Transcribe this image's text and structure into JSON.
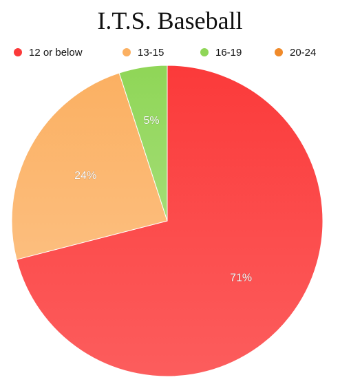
{
  "chart_data": {
    "type": "pie",
    "title": "I.T.S. Baseball",
    "categories": [
      "12 or below",
      "13-15",
      "16-19",
      "20-24"
    ],
    "values": [
      71,
      24,
      5,
      0
    ],
    "value_labels": [
      "71%",
      "24%",
      "5%",
      ""
    ],
    "colors": [
      "#fb3a3a",
      "#fbb062",
      "#8fd657",
      "#f08a2a"
    ],
    "legend_position": "top",
    "start_angle": "12 o'clock",
    "direction": "clockwise"
  }
}
